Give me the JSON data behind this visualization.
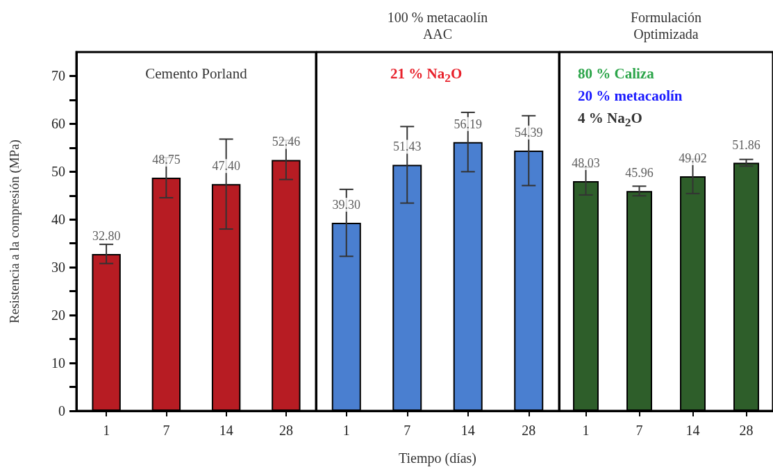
{
  "chart_data": [
    {
      "type": "bar",
      "ylabel": "Resistencia a la compresión (MPa)",
      "categories": [
        "1",
        "7",
        "14",
        "28"
      ],
      "annotations": [
        "Cemento Porland"
      ],
      "ylim": [
        0,
        75
      ],
      "yticks": [
        0,
        10,
        20,
        30,
        40,
        50,
        60,
        70
      ],
      "series": [
        {
          "color": "#b71c23",
          "values": [
            32.8,
            48.75,
            47.4,
            52.46
          ],
          "value_labels": [
            "32.80",
            "48.75",
            "47.40",
            "52.46"
          ],
          "errors": [
            2.0,
            4.2,
            9.4,
            4.1
          ]
        }
      ]
    },
    {
      "type": "bar",
      "title": "100 % metacaolín\nAAC",
      "xlabel": "Tiempo (días)",
      "categories": [
        "1",
        "7",
        "14",
        "28"
      ],
      "annotations": [
        "21 % Na$_{2}$O"
      ],
      "ylim": [
        0,
        75
      ],
      "yticks": [
        0,
        10,
        20,
        30,
        40,
        50,
        60,
        70
      ],
      "tick_labels": "x",
      "series": [
        {
          "color": "#4a7fd0",
          "values": [
            39.3,
            51.43,
            56.19,
            54.39
          ],
          "value_labels": [
            "39.30",
            "51.43",
            "56.19",
            "54.39"
          ],
          "errors": [
            7.0,
            8.0,
            6.2,
            7.3
          ]
        }
      ]
    },
    {
      "type": "bar",
      "title": "Formulación\nOptimizada",
      "categories": [
        "1",
        "7",
        "14",
        "28"
      ],
      "annotations": [
        "80 % Caliza",
        "20 % metacaolín",
        "4 % Na$_{2}$O"
      ],
      "ylim": [
        0,
        75
      ],
      "yticks": [
        0,
        10,
        20,
        30,
        40,
        50,
        60,
        70
      ],
      "tick_labels": "x",
      "series": [
        {
          "color": "#2e5e2a",
          "values": [
            48.03,
            45.96,
            49.02,
            51.86
          ],
          "value_labels": [
            "48.03",
            "45.96",
            "49.02",
            "51.86"
          ],
          "errors": [
            2.9,
            1.0,
            3.6,
            0.7
          ]
        }
      ]
    }
  ]
}
